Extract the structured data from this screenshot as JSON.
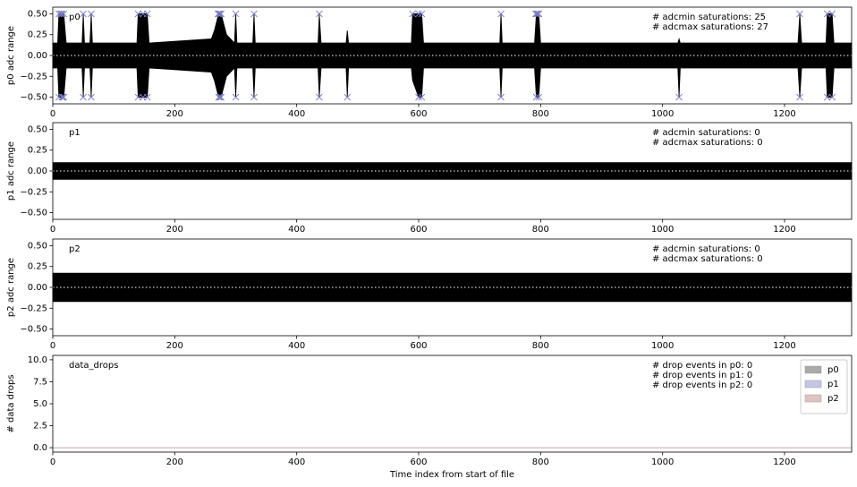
{
  "chart_data": [
    {
      "type": "area",
      "label": "p0",
      "ylabel": "p0 adc range",
      "notes": [
        "# adcmin saturations: 25",
        "# adcmax saturations: 27"
      ],
      "x": [
        0,
        8,
        10,
        18,
        22,
        48,
        50,
        52,
        61,
        63,
        65,
        138,
        140,
        148,
        155,
        158,
        260,
        265,
        272,
        276,
        285,
        298,
        300,
        302,
        328,
        330,
        332,
        435,
        437,
        440,
        481,
        483,
        485,
        588,
        590,
        600,
        605,
        608,
        733,
        735,
        737,
        790,
        793,
        797,
        800,
        1025,
        1027,
        1029,
        1222,
        1225,
        1228,
        1268,
        1270,
        1278,
        1281,
        1310
      ],
      "upper": [
        0.15,
        0.15,
        0.5,
        0.5,
        0.15,
        0.15,
        0.5,
        0.15,
        0.15,
        0.5,
        0.15,
        0.15,
        0.5,
        0.5,
        0.5,
        0.15,
        0.2,
        0.3,
        0.5,
        0.5,
        0.25,
        0.15,
        0.5,
        0.15,
        0.15,
        0.5,
        0.15,
        0.15,
        0.5,
        0.15,
        0.15,
        0.3,
        0.15,
        0.15,
        0.5,
        0.5,
        0.5,
        0.15,
        0.15,
        0.5,
        0.15,
        0.15,
        0.5,
        0.5,
        0.15,
        0.15,
        0.2,
        0.15,
        0.15,
        0.5,
        0.15,
        0.15,
        0.5,
        0.5,
        0.15,
        0.15
      ],
      "lower": [
        -0.15,
        -0.15,
        -0.5,
        -0.5,
        -0.15,
        -0.15,
        -0.5,
        -0.15,
        -0.15,
        -0.5,
        -0.15,
        -0.15,
        -0.5,
        -0.5,
        -0.5,
        -0.15,
        -0.2,
        -0.3,
        -0.5,
        -0.5,
        -0.25,
        -0.15,
        -0.5,
        -0.15,
        -0.15,
        -0.5,
        -0.15,
        -0.15,
        -0.5,
        -0.15,
        -0.15,
        -0.5,
        -0.15,
        -0.15,
        -0.3,
        -0.5,
        -0.5,
        -0.15,
        -0.15,
        -0.5,
        -0.15,
        -0.15,
        -0.5,
        -0.5,
        -0.15,
        -0.15,
        -0.5,
        -0.15,
        -0.15,
        -0.5,
        -0.15,
        -0.15,
        -0.5,
        -0.5,
        -0.15,
        -0.15
      ],
      "color": "#000000",
      "zero_line": {
        "y": 0,
        "color": "#ffffff",
        "dash": true
      },
      "markers": [
        {
          "x": [
            10,
            13,
            15,
            18,
            50,
            63,
            140,
            148,
            155,
            271,
            272,
            274,
            276,
            300,
            330,
            437,
            590,
            600,
            605,
            735,
            792,
            793,
            795,
            797,
            1225,
            1270,
            1278
          ],
          "values": [
            0.5,
            0.5,
            0.5,
            0.5,
            0.5,
            0.5,
            0.5,
            0.5,
            0.5,
            0.5,
            0.5,
            0.5,
            0.5,
            0.5,
            0.5,
            0.5,
            0.5,
            0.5,
            0.5,
            0.5,
            0.5,
            0.5,
            0.5,
            0.5,
            0.5,
            0.5,
            0.5
          ],
          "color": "#7b7bc4"
        },
        {
          "x": [
            10,
            15,
            16,
            18,
            50,
            63,
            140,
            148,
            155,
            272,
            274,
            276,
            300,
            330,
            437,
            483,
            600,
            605,
            735,
            793,
            797,
            1027,
            1225,
            1270,
            1278
          ],
          "values": [
            -0.5,
            -0.5,
            -0.5,
            -0.5,
            -0.5,
            -0.5,
            -0.5,
            -0.5,
            -0.5,
            -0.5,
            -0.5,
            -0.5,
            -0.5,
            -0.5,
            -0.5,
            -0.5,
            -0.5,
            -0.5,
            -0.5,
            -0.5,
            -0.5,
            -0.5,
            -0.5,
            -0.5,
            -0.5
          ],
          "color": "#7b7bc4"
        }
      ],
      "xlim": [
        0,
        1310
      ],
      "xticks": [
        0,
        200,
        400,
        600,
        800,
        1000,
        1200
      ],
      "ylim": [
        -0.58,
        0.58
      ],
      "yticks": [
        {
          "value": -0.5,
          "label": "−0.50"
        },
        {
          "value": -0.25,
          "label": "−0.25"
        },
        {
          "value": 0,
          "label": "0.00"
        },
        {
          "value": 0.25,
          "label": "0.25"
        },
        {
          "value": 0.5,
          "label": "0.50"
        }
      ]
    },
    {
      "type": "area",
      "label": "p1",
      "ylabel": "p1 adc range",
      "notes": [
        "# adcmin saturations: 0",
        "# adcmax saturations: 0"
      ],
      "x": [
        0,
        1310
      ],
      "upper": [
        0.1,
        0.1
      ],
      "lower": [
        -0.1,
        -0.1
      ],
      "color": "#000000",
      "zero_line": {
        "y": 0,
        "color": "#ffffff",
        "dash": true
      },
      "xlim": [
        0,
        1310
      ],
      "xticks": [
        0,
        200,
        400,
        600,
        800,
        1000,
        1200
      ],
      "ylim": [
        -0.58,
        0.58
      ],
      "yticks": [
        {
          "value": -0.5,
          "label": "−0.50"
        },
        {
          "value": -0.25,
          "label": "−0.25"
        },
        {
          "value": 0,
          "label": "0.00"
        },
        {
          "value": 0.25,
          "label": "0.25"
        },
        {
          "value": 0.5,
          "label": "0.50"
        }
      ]
    },
    {
      "type": "area",
      "label": "p2",
      "ylabel": "p2 adc range",
      "notes": [
        "# adcmin saturations: 0",
        "# adcmax saturations: 0"
      ],
      "x": [
        0,
        1310
      ],
      "upper": [
        0.17,
        0.17
      ],
      "lower": [
        -0.17,
        -0.17
      ],
      "color": "#000000",
      "zero_line": {
        "y": 0,
        "color": "#ffffff",
        "dash": true
      },
      "xlim": [
        0,
        1310
      ],
      "xticks": [
        0,
        200,
        400,
        600,
        800,
        1000,
        1200
      ],
      "ylim": [
        -0.58,
        0.58
      ],
      "yticks": [
        {
          "value": -0.5,
          "label": "−0.50"
        },
        {
          "value": -0.25,
          "label": "−0.25"
        },
        {
          "value": 0,
          "label": "0.00"
        },
        {
          "value": 0.25,
          "label": "0.25"
        },
        {
          "value": 0.5,
          "label": "0.50"
        }
      ]
    },
    {
      "type": "line",
      "label": "data_drops",
      "ylabel": "# data drops",
      "xlabel": "Time index from start of file",
      "notes": [
        "# drop events in p0: 0",
        "# drop events in p1: 0",
        "# drop events in p2: 0"
      ],
      "x": [
        0,
        1310
      ],
      "series": [
        {
          "name": "p0",
          "color": "#aaaaaa",
          "values": [
            0,
            0
          ]
        },
        {
          "name": "p1",
          "color": "#c5c5e8",
          "values": [
            0,
            0
          ]
        },
        {
          "name": "p2",
          "color": "#e0c2c2",
          "values": [
            0,
            0
          ]
        }
      ],
      "legend": "upper right",
      "xlim": [
        0,
        1310
      ],
      "xticks": [
        0,
        200,
        400,
        600,
        800,
        1000,
        1200
      ],
      "ylim": [
        -0.5,
        10.5
      ],
      "yticks": [
        {
          "value": 0,
          "label": "0.0"
        },
        {
          "value": 2.5,
          "label": "2.5"
        },
        {
          "value": 5,
          "label": "5.0"
        },
        {
          "value": 7.5,
          "label": "7.5"
        },
        {
          "value": 10,
          "label": "10.0"
        }
      ]
    }
  ]
}
